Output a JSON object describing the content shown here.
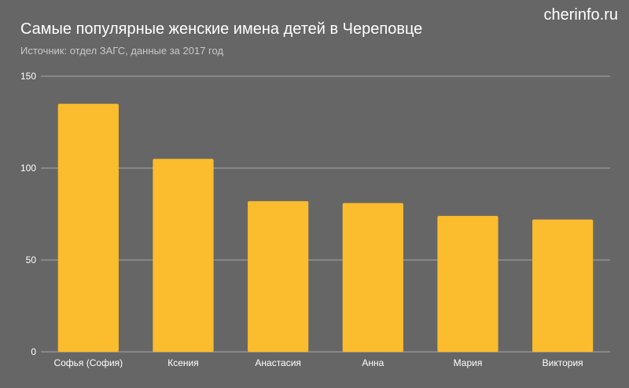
{
  "brand": "cherinfo.ru",
  "chart_data": {
    "type": "bar",
    "title": "Самые популярные женские имена детей в Череповце",
    "subtitle": "Источник: отдел ЗАГС, данные за 2017 год",
    "categories": [
      "Софья (София)",
      "Ксения",
      "Анастасия",
      "Анна",
      "Мария",
      "Виктория"
    ],
    "values": [
      135,
      105,
      82,
      81,
      74,
      72
    ],
    "xlabel": "",
    "ylabel": "",
    "ylim": [
      0,
      150
    ],
    "yticks": [
      0,
      50,
      100,
      150
    ],
    "grid": true,
    "legend": "none",
    "bar_color": "#fbbc2d",
    "grid_color": "#a8a8a8",
    "background": "#666666"
  }
}
